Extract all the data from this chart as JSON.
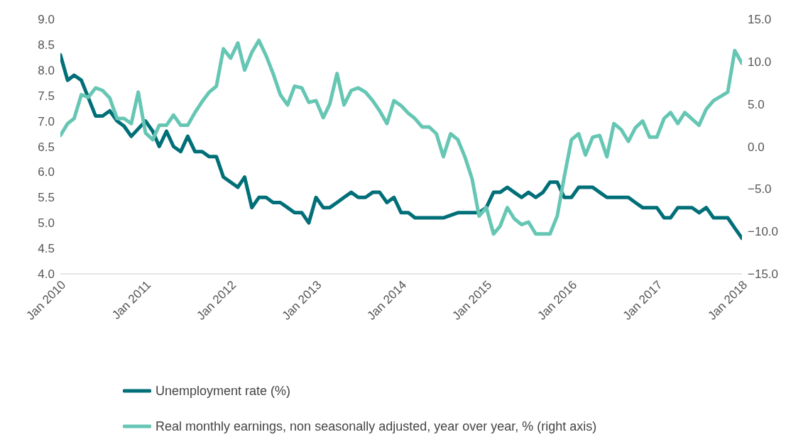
{
  "chart_data": {
    "type": "line",
    "legend": "bottom",
    "grid": false,
    "marker": "none",
    "line_style": "solid",
    "xlim": [
      "2010-01",
      "2018-01"
    ],
    "xticks": [
      {
        "value": "2010-01",
        "label": "Jan 2010"
      },
      {
        "value": "2011-01",
        "label": "Jan 2011"
      },
      {
        "value": "2012-01",
        "label": "Jan 2012"
      },
      {
        "value": "2013-01",
        "label": "Jan 2013"
      },
      {
        "value": "2014-01",
        "label": "Jan 2014"
      },
      {
        "value": "2015-01",
        "label": "Jan 2015"
      },
      {
        "value": "2016-01",
        "label": "Jan 2016"
      },
      {
        "value": "2017-01",
        "label": "Jan 2017"
      },
      {
        "value": "2018-01",
        "label": "Jan 2018"
      }
    ],
    "ylim": [
      4,
      9
    ],
    "yticks": [
      {
        "value": 4,
        "label": "4.0"
      },
      {
        "value": 4.5,
        "label": "4.5"
      },
      {
        "value": 5,
        "label": "5.0"
      },
      {
        "value": 5.5,
        "label": "5.5"
      },
      {
        "value": 6,
        "label": "6.0"
      },
      {
        "value": 6.5,
        "label": "6.5"
      },
      {
        "value": 7,
        "label": "7.0"
      },
      {
        "value": 7.5,
        "label": "7.5"
      },
      {
        "value": 8,
        "label": "8.0"
      },
      {
        "value": 8.5,
        "label": "8.5"
      },
      {
        "value": 9,
        "label": "9.0"
      }
    ],
    "y2lim": [
      -15,
      15
    ],
    "y2ticks": [
      {
        "value": -15,
        "label": "−15.0"
      },
      {
        "value": -10,
        "label": "−10.0"
      },
      {
        "value": -5,
        "label": "−5.0"
      },
      {
        "value": 0,
        "label": "0.0"
      },
      {
        "value": 5,
        "label": "5.0"
      },
      {
        "value": 10,
        "label": "10.0"
      },
      {
        "value": 15,
        "label": "15.0"
      }
    ],
    "series": [
      {
        "name": "Unemployment rate (%)",
        "color": "#006f78",
        "x": [
          "2010-01",
          "2010-02",
          "2010-03",
          "2010-04",
          "2010-06",
          "2010-07",
          "2010-08",
          "2010-09",
          "2010-10",
          "2010-11",
          "2011-01",
          "2011-02",
          "2011-03",
          "2011-04",
          "2011-05",
          "2011-06",
          "2011-07",
          "2011-08",
          "2011-09",
          "2011-10",
          "2011-11",
          "2011-12",
          "2012-02",
          "2012-03",
          "2012-04",
          "2012-05",
          "2012-06",
          "2012-07",
          "2012-08",
          "2012-09",
          "2012-10",
          "2012-11",
          "2012-12",
          "2013-01",
          "2013-02",
          "2013-03",
          "2013-04",
          "2013-05",
          "2013-06",
          "2013-07",
          "2013-08",
          "2013-09",
          "2013-10",
          "2013-11",
          "2013-12",
          "2014-01",
          "2014-02",
          "2014-03",
          "2014-07",
          "2014-09",
          "2014-12",
          "2015-01",
          "2015-02",
          "2015-03",
          "2015-04",
          "2015-05",
          "2015-06",
          "2015-07",
          "2015-08",
          "2015-09",
          "2015-10",
          "2015-11",
          "2015-12",
          "2016-01",
          "2016-02",
          "2016-04",
          "2016-05",
          "2016-06",
          "2016-09",
          "2016-10",
          "2016-11",
          "2017-01",
          "2017-02",
          "2017-03",
          "2017-04",
          "2017-06",
          "2017-07",
          "2017-08",
          "2017-09",
          "2017-11",
          "2017-12",
          "2018-01"
        ],
        "values": [
          8.3,
          7.8,
          7.9,
          7.8,
          7.1,
          7.1,
          7.2,
          7.0,
          6.9,
          6.7,
          7.0,
          6.8,
          6.5,
          6.8,
          6.5,
          6.4,
          6.7,
          6.4,
          6.4,
          6.3,
          6.3,
          5.9,
          5.7,
          5.9,
          5.3,
          5.5,
          5.5,
          5.4,
          5.4,
          5.3,
          5.2,
          5.2,
          5.0,
          5.5,
          5.3,
          5.3,
          5.4,
          5.5,
          5.6,
          5.5,
          5.5,
          5.6,
          5.6,
          5.4,
          5.5,
          5.2,
          5.2,
          5.1,
          5.1,
          5.2,
          5.2,
          5.3,
          5.6,
          5.6,
          5.7,
          5.6,
          5.5,
          5.6,
          5.5,
          5.6,
          5.8,
          5.8,
          5.5,
          5.5,
          5.7,
          5.7,
          5.6,
          5.5,
          5.5,
          5.4,
          5.3,
          5.3,
          5.1,
          5.1,
          5.3,
          5.3,
          5.2,
          5.3,
          5.1,
          5.1,
          4.9,
          4.7
        ]
      },
      {
        "name": "Real monthly earnings, non seasonally adjusted, year over year, % (right axis)",
        "color": "#66c6b4",
        "axis": "y2",
        "x": [
          "2010-01",
          "2010-02",
          "2010-03",
          "2010-04",
          "2010-05",
          "2010-06",
          "2010-07",
          "2010-08",
          "2010-09",
          "2010-10",
          "2010-11",
          "2010-12",
          "2011-01",
          "2011-02",
          "2011-03",
          "2011-04",
          "2011-05",
          "2011-06",
          "2011-07",
          "2011-08",
          "2011-09",
          "2011-10",
          "2011-11",
          "2011-12",
          "2012-01",
          "2012-02",
          "2012-03",
          "2012-04",
          "2012-05",
          "2012-06",
          "2012-07",
          "2012-08",
          "2012-09",
          "2012-10",
          "2012-11",
          "2012-12",
          "2013-01",
          "2013-02",
          "2013-03",
          "2013-04",
          "2013-05",
          "2013-06",
          "2013-07",
          "2013-08",
          "2013-09",
          "2013-10",
          "2013-11",
          "2013-12",
          "2014-01",
          "2014-02",
          "2014-03",
          "2014-04",
          "2014-05",
          "2014-06",
          "2014-07",
          "2014-08",
          "2014-09",
          "2014-10",
          "2014-11",
          "2014-12",
          "2015-01",
          "2015-02",
          "2015-03",
          "2015-04",
          "2015-05",
          "2015-06",
          "2015-07",
          "2015-08",
          "2015-10",
          "2015-11",
          "2015-12",
          "2016-01",
          "2016-02",
          "2016-03",
          "2016-04",
          "2016-05",
          "2016-06",
          "2016-07",
          "2016-08",
          "2016-09",
          "2016-10",
          "2016-11",
          "2016-12",
          "2017-01",
          "2017-02",
          "2017-03",
          "2017-04",
          "2017-05",
          "2017-07",
          "2017-08",
          "2017-09",
          "2017-11",
          "2017-12",
          "2018-01"
        ],
        "values": [
          1.3,
          2.7,
          3.3,
          6.1,
          5.8,
          6.9,
          6.6,
          5.7,
          3.3,
          3.3,
          2.7,
          6.4,
          1.6,
          0.8,
          2.5,
          2.5,
          3.7,
          2.5,
          2.5,
          4.0,
          5.3,
          6.4,
          7.1,
          11.5,
          10.4,
          12.2,
          9.0,
          11.1,
          12.5,
          10.7,
          8.6,
          6.1,
          4.9,
          7.1,
          6.9,
          5.2,
          5.4,
          3.4,
          5.0,
          8.6,
          4.9,
          6.6,
          6.9,
          6.4,
          5.4,
          4.2,
          2.7,
          5.4,
          4.8,
          3.9,
          3.3,
          2.3,
          2.3,
          1.5,
          -1.2,
          1.5,
          0.8,
          -1.2,
          -3.8,
          -8.2,
          -7.2,
          -10.3,
          -9.4,
          -7.2,
          -8.5,
          -9.2,
          -8.9,
          -10.3,
          -10.3,
          -8.2,
          -3.6,
          0.8,
          1.5,
          -1.0,
          1.1,
          1.3,
          -1.2,
          2.7,
          2.0,
          0.6,
          2.2,
          3.0,
          1.1,
          1.1,
          3.3,
          4.0,
          2.7,
          4.0,
          2.5,
          4.4,
          5.4,
          6.4,
          11.3,
          9.8
        ]
      }
    ]
  }
}
